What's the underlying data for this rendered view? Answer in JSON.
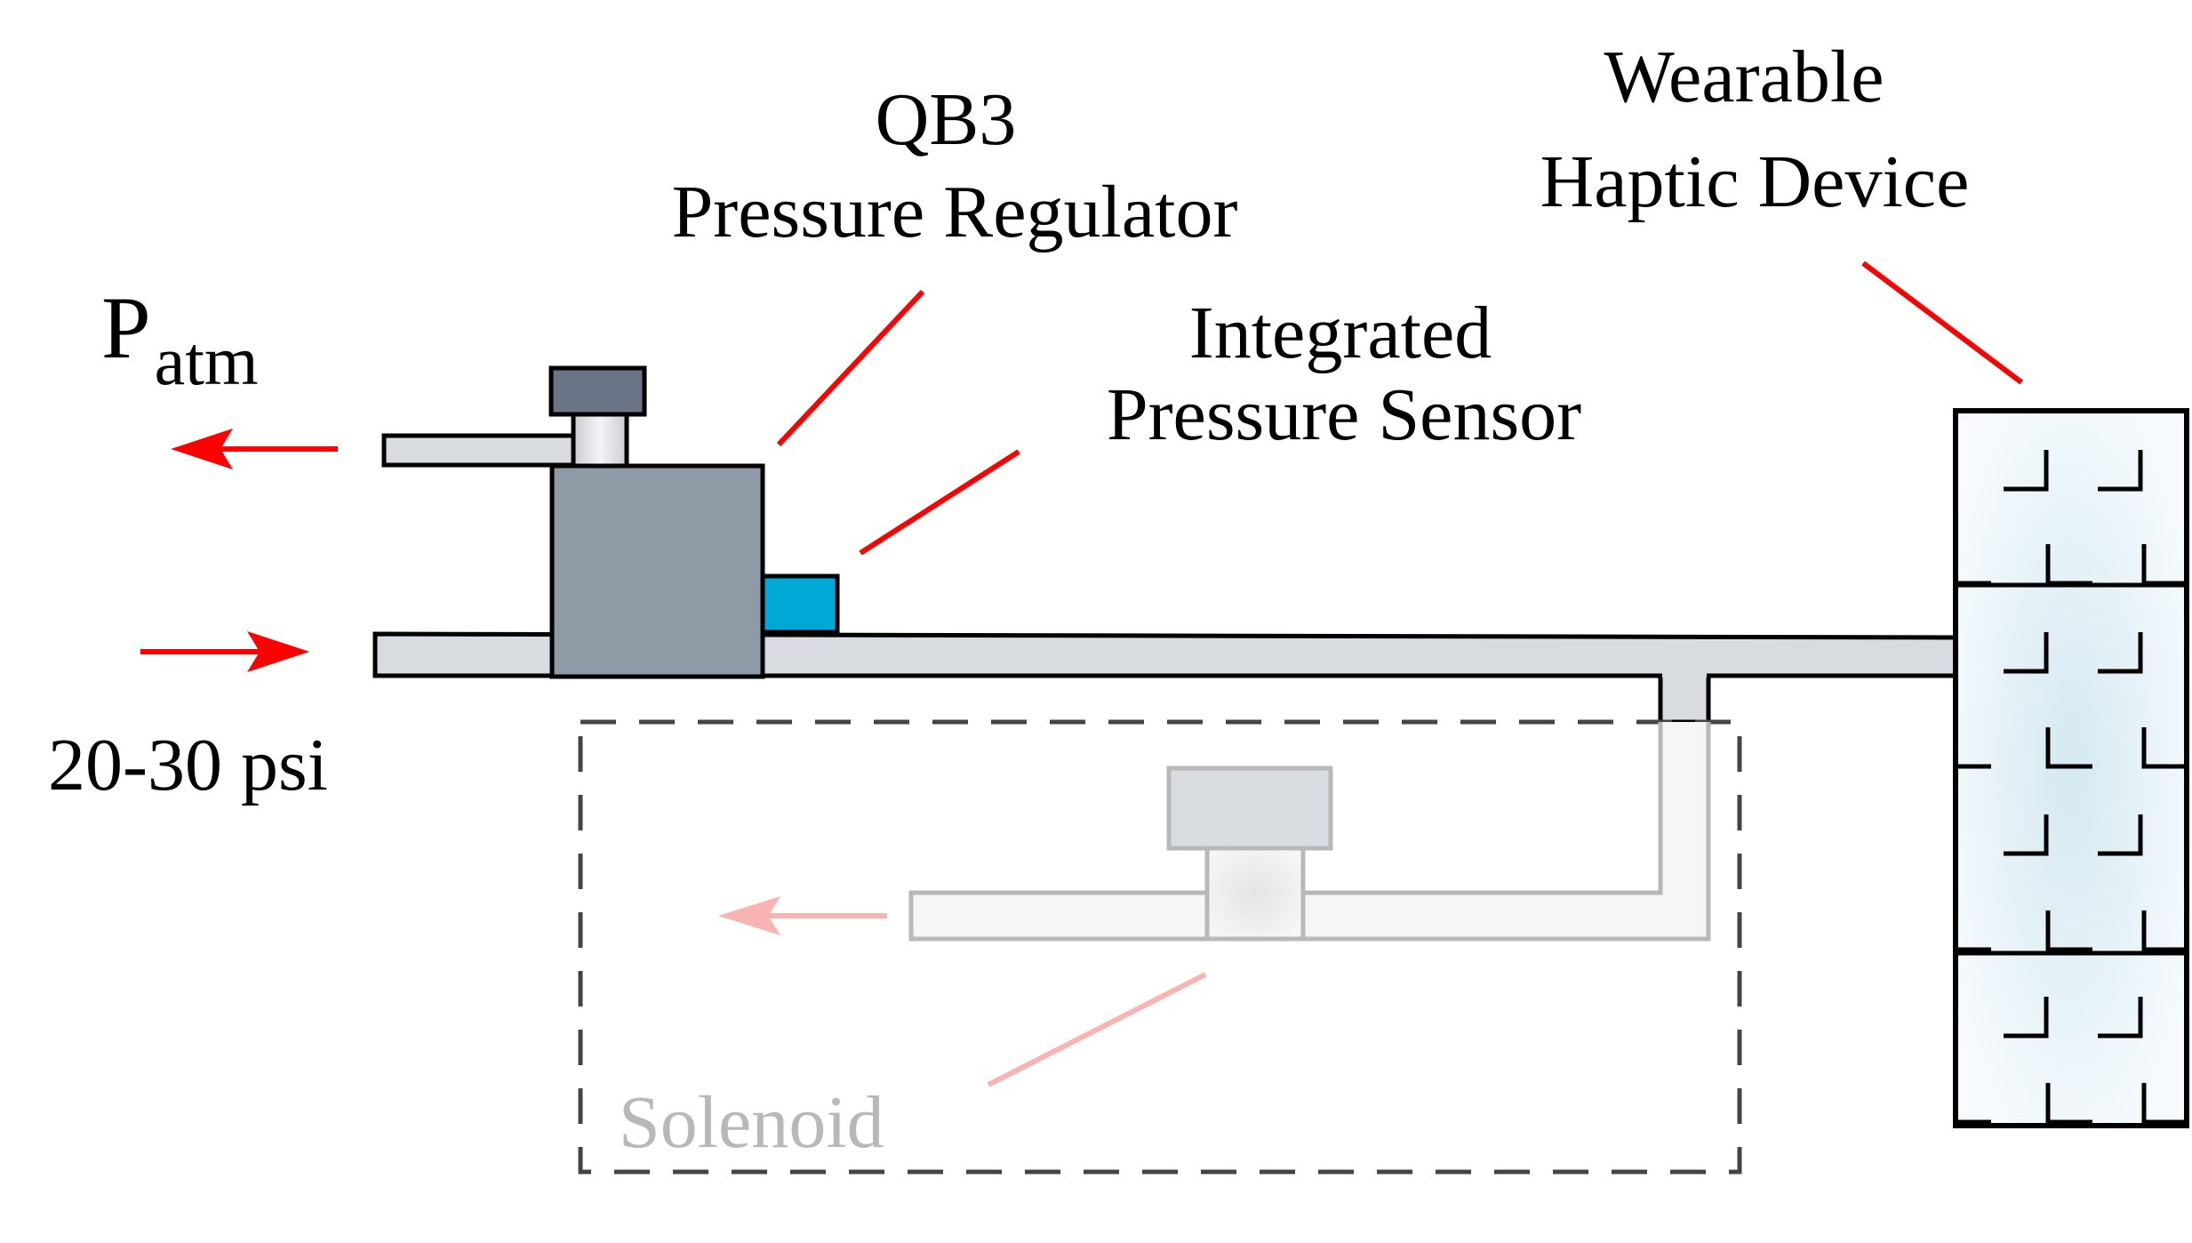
{
  "labels": {
    "regulator_line1": "QB3",
    "regulator_line2": "Pressure Regulator",
    "sensor_line1": "Integrated",
    "sensor_line2": "Pressure Sensor",
    "device_line1": "Wearable",
    "device_line2": "Haptic Device",
    "patm_main": "P",
    "patm_sub": "atm",
    "supply_pressure": "20-30 psi",
    "solenoid": "Solenoid"
  },
  "colors": {
    "arrow_red": "#ff0000",
    "arrow_faded": "#f9b3b3",
    "regulator_body": "#8f9aa7",
    "regulator_knob": "#6b7485",
    "sensor": "#00a9d6",
    "tube": "#d8dbe0",
    "faded_outline": "#b8b8b8",
    "faded_text": "#b8b8b8",
    "dashed_box": "#444444",
    "device_fill": "#e6f2f6"
  }
}
